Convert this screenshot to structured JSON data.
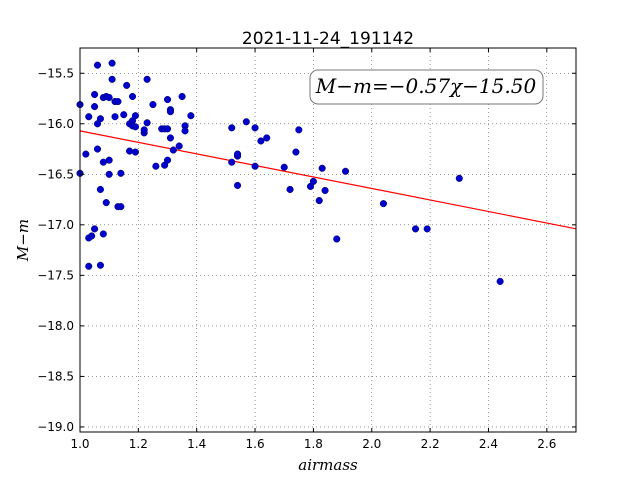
{
  "chart_data": {
    "type": "scatter",
    "title": "2021-11-24_191142",
    "xlabel": "airmass",
    "ylabel": "M−m",
    "xlim": [
      1.0,
      2.7
    ],
    "ylim": [
      -19.05,
      -15.25
    ],
    "xticks": [
      "1.0",
      "1.2",
      "1.4",
      "1.6",
      "1.8",
      "2.0",
      "2.2",
      "2.4",
      "2.6"
    ],
    "yticks": [
      "−15.5",
      "−16.0",
      "−16.5",
      "−17.0",
      "−17.5",
      "−18.0",
      "−18.5",
      "−19.0"
    ],
    "grid": true,
    "annotation": "M−m=−0.57χ−15.50",
    "annotation_position": "top-right",
    "colors": {
      "points": "#0000cc",
      "fit_line": "#ff0000"
    },
    "fit": {
      "slope": -0.57,
      "intercept": -15.5
    },
    "points": [
      [
        1.0,
        -15.81
      ],
      [
        1.0,
        -16.49
      ],
      [
        1.02,
        -16.3
      ],
      [
        1.03,
        -15.93
      ],
      [
        1.03,
        -17.13
      ],
      [
        1.03,
        -17.41
      ],
      [
        1.04,
        -17.11
      ],
      [
        1.05,
        -17.04
      ],
      [
        1.05,
        -15.83
      ],
      [
        1.05,
        -15.71
      ],
      [
        1.06,
        -15.42
      ],
      [
        1.06,
        -16.0
      ],
      [
        1.06,
        -16.25
      ],
      [
        1.07,
        -15.95
      ],
      [
        1.07,
        -16.65
      ],
      [
        1.07,
        -17.4
      ],
      [
        1.08,
        -15.74
      ],
      [
        1.08,
        -16.38
      ],
      [
        1.08,
        -17.09
      ],
      [
        1.09,
        -16.78
      ],
      [
        1.09,
        -15.73
      ],
      [
        1.1,
        -16.36
      ],
      [
        1.1,
        -16.5
      ],
      [
        1.1,
        -15.74
      ],
      [
        1.11,
        -15.56
      ],
      [
        1.11,
        -15.4
      ],
      [
        1.12,
        -15.93
      ],
      [
        1.12,
        -15.78
      ],
      [
        1.13,
        -15.78
      ],
      [
        1.13,
        -16.82
      ],
      [
        1.14,
        -16.49
      ],
      [
        1.14,
        -16.82
      ],
      [
        1.15,
        -15.91
      ],
      [
        1.16,
        -15.62
      ],
      [
        1.17,
        -16.0
      ],
      [
        1.17,
        -16.27
      ],
      [
        1.18,
        -15.97
      ],
      [
        1.18,
        -16.02
      ],
      [
        1.18,
        -15.73
      ],
      [
        1.19,
        -16.28
      ],
      [
        1.19,
        -15.92
      ],
      [
        1.19,
        -16.03
      ],
      [
        1.22,
        -16.09
      ],
      [
        1.22,
        -16.06
      ],
      [
        1.23,
        -15.99
      ],
      [
        1.23,
        -15.56
      ],
      [
        1.25,
        -15.81
      ],
      [
        1.26,
        -16.42
      ],
      [
        1.28,
        -16.05
      ],
      [
        1.29,
        -16.41
      ],
      [
        1.29,
        -16.05
      ],
      [
        1.3,
        -16.36
      ],
      [
        1.3,
        -15.76
      ],
      [
        1.3,
        -16.05
      ],
      [
        1.31,
        -16.14
      ],
      [
        1.31,
        -15.86
      ],
      [
        1.31,
        -15.88
      ],
      [
        1.32,
        -16.26
      ],
      [
        1.34,
        -16.22
      ],
      [
        1.35,
        -15.73
      ],
      [
        1.36,
        -16.02
      ],
      [
        1.36,
        -16.07
      ],
      [
        1.38,
        -15.92
      ],
      [
        1.52,
        -16.04
      ],
      [
        1.52,
        -16.38
      ],
      [
        1.54,
        -16.32
      ],
      [
        1.54,
        -16.3
      ],
      [
        1.54,
        -16.61
      ],
      [
        1.57,
        -15.98
      ],
      [
        1.6,
        -16.04
      ],
      [
        1.6,
        -16.42
      ],
      [
        1.62,
        -16.17
      ],
      [
        1.64,
        -16.14
      ],
      [
        1.7,
        -16.43
      ],
      [
        1.72,
        -16.65
      ],
      [
        1.74,
        -16.28
      ],
      [
        1.75,
        -16.06
      ],
      [
        1.79,
        -16.62
      ],
      [
        1.8,
        -16.57
      ],
      [
        1.82,
        -16.76
      ],
      [
        1.83,
        -16.44
      ],
      [
        1.84,
        -16.66
      ],
      [
        1.88,
        -17.14
      ],
      [
        1.91,
        -16.47
      ],
      [
        2.04,
        -16.79
      ],
      [
        2.15,
        -17.04
      ],
      [
        2.19,
        -17.04
      ],
      [
        2.3,
        -16.54
      ],
      [
        2.44,
        -17.56
      ]
    ]
  }
}
